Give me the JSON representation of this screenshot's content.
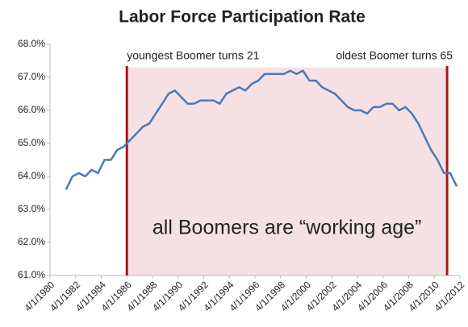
{
  "chart_data": {
    "type": "line",
    "title": "Labor Force Participation Rate",
    "color": "#4a7ab8",
    "x": [
      "1981-07-01",
      "1982-01-01",
      "1982-07-01",
      "1983-01-01",
      "1983-07-01",
      "1984-01-01",
      "1984-07-01",
      "1985-01-01",
      "1985-07-01",
      "1986-01-01",
      "1986-07-01",
      "1987-01-01",
      "1987-07-01",
      "1988-01-01",
      "1988-07-01",
      "1989-01-01",
      "1989-07-01",
      "1990-01-01",
      "1990-07-01",
      "1991-01-01",
      "1991-07-01",
      "1992-01-01",
      "1992-07-01",
      "1993-01-01",
      "1993-07-01",
      "1994-01-01",
      "1994-07-01",
      "1995-01-01",
      "1995-07-01",
      "1996-01-01",
      "1996-07-01",
      "1997-01-01",
      "1997-07-01",
      "1998-01-01",
      "1998-07-01",
      "1999-01-01",
      "1999-07-01",
      "2000-01-01",
      "2000-07-01",
      "2001-01-01",
      "2001-07-01",
      "2002-01-01",
      "2002-07-01",
      "2003-01-01",
      "2003-07-01",
      "2004-01-01",
      "2004-07-01",
      "2005-01-01",
      "2005-07-01",
      "2006-01-01",
      "2006-07-01",
      "2007-01-01",
      "2007-07-01",
      "2008-01-01",
      "2008-07-01",
      "2009-01-01",
      "2009-07-01",
      "2010-01-01",
      "2010-07-01",
      "2011-01-01",
      "2011-07-01",
      "2012-01-01"
    ],
    "values": [
      63.6,
      64.0,
      64.1,
      64.0,
      64.2,
      64.1,
      64.5,
      64.5,
      64.8,
      64.9,
      65.1,
      65.3,
      65.5,
      65.6,
      65.9,
      66.2,
      66.5,
      66.6,
      66.4,
      66.2,
      66.2,
      66.3,
      66.3,
      66.3,
      66.2,
      66.5,
      66.6,
      66.7,
      66.6,
      66.8,
      66.9,
      67.1,
      67.1,
      67.1,
      67.1,
      67.2,
      67.1,
      67.2,
      66.9,
      66.9,
      66.7,
      66.6,
      66.5,
      66.3,
      66.1,
      66.0,
      66.0,
      65.9,
      66.1,
      66.1,
      66.2,
      66.2,
      66.0,
      66.1,
      65.9,
      65.6,
      65.2,
      64.8,
      64.5,
      64.1,
      64.1,
      63.7
    ],
    "xlim": [
      "1980-04-01",
      "2012-04-01"
    ],
    "xticks": [
      {
        "value": "1980-04-01",
        "label": "4/1/1980"
      },
      {
        "value": "1982-04-01",
        "label": "4/1/1982"
      },
      {
        "value": "1984-04-01",
        "label": "4/1/1984"
      },
      {
        "value": "1986-04-01",
        "label": "4/1/1986"
      },
      {
        "value": "1988-04-01",
        "label": "4/1/1988"
      },
      {
        "value": "1990-04-01",
        "label": "4/1/1990"
      },
      {
        "value": "1992-04-01",
        "label": "4/1/1992"
      },
      {
        "value": "1994-04-01",
        "label": "4/1/1994"
      },
      {
        "value": "1996-04-01",
        "label": "4/1/1996"
      },
      {
        "value": "1998-04-01",
        "label": "4/1/1998"
      },
      {
        "value": "2000-04-01",
        "label": "4/1/2000"
      },
      {
        "value": "2002-04-01",
        "label": "4/1/2002"
      },
      {
        "value": "2004-04-01",
        "label": "4/1/2004"
      },
      {
        "value": "2006-04-01",
        "label": "4/1/2006"
      },
      {
        "value": "2008-04-01",
        "label": "4/1/2008"
      },
      {
        "value": "2010-04-01",
        "label": "4/1/2010"
      },
      {
        "value": "2012-04-01",
        "label": "4/1/2012"
      }
    ],
    "ylim": [
      61,
      68
    ],
    "yticks": [
      {
        "value": 61,
        "label": "61.0%"
      },
      {
        "value": 62,
        "label": "62.0%"
      },
      {
        "value": 63,
        "label": "63.0%"
      },
      {
        "value": 64,
        "label": "64.0%"
      },
      {
        "value": 65,
        "label": "65.0%"
      },
      {
        "value": 66,
        "label": "66.0%"
      },
      {
        "value": 67,
        "label": "67.0%"
      },
      {
        "value": 68,
        "label": "68.0%"
      }
    ],
    "grid": false,
    "shaded_region": {
      "start": "1986-04-01",
      "end": "2011-04-01",
      "top": 67.3,
      "color": "#f5e1e3",
      "label": "all Boomers are “working age”"
    },
    "markers": [
      {
        "x": "1986-04-01",
        "label": "youngest Boomer turns 21",
        "color": "#a31a1a"
      },
      {
        "x": "2011-04-01",
        "label": "oldest Boomer turns 65",
        "color": "#a31a1a"
      }
    ]
  }
}
